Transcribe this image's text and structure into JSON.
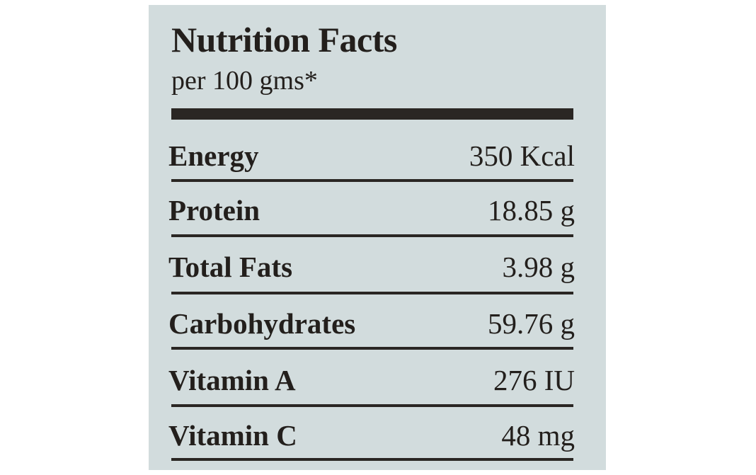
{
  "label": {
    "title": "Nutrition Facts",
    "serving": "per 100 gms*",
    "rows": [
      {
        "nutrient": "Energy",
        "amount": "350 Kcal"
      },
      {
        "nutrient": "Protein",
        "amount": "18.85 g"
      },
      {
        "nutrient": "Total Fats",
        "amount": "3.98 g"
      },
      {
        "nutrient": "Carbohydrates",
        "amount": "59.76 g"
      },
      {
        "nutrient": "Vitamin A",
        "amount": "276 IU"
      },
      {
        "nutrient": "Vitamin C",
        "amount": "48 mg"
      }
    ]
  },
  "colors": {
    "panel": "#d2dcdd",
    "ink": "#231f1c"
  }
}
